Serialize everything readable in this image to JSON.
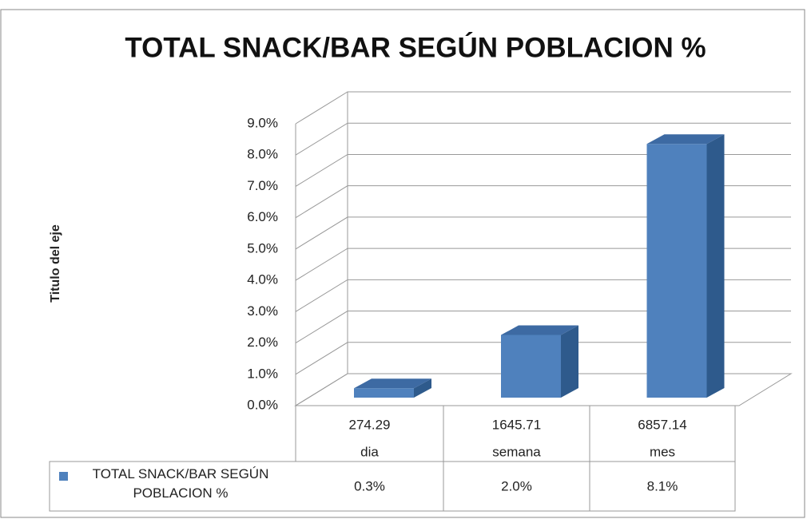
{
  "chart_data": {
    "type": "bar3d",
    "title": "TOTAL SNACK/BAR SEGÚN POBLACION %",
    "y_label": "Titulo del eje",
    "categories": [
      [
        "274.29",
        "dia"
      ],
      [
        "1645.71",
        "semana"
      ],
      [
        "6857.14",
        "mes"
      ]
    ],
    "series": [
      {
        "name": "TOTAL SNACK/BAR SEGÚN POBLACION %",
        "color": "#4f81bd",
        "values": [
          0.3,
          2.0,
          8.1
        ],
        "value_labels": [
          "0.3%",
          "2.0%",
          "8.1%"
        ]
      }
    ],
    "ylim": [
      0,
      9
    ],
    "yticks": [
      {
        "value": 0,
        "label": "0.0%"
      },
      {
        "value": 1,
        "label": "1.0%"
      },
      {
        "value": 2,
        "label": "2.0%"
      },
      {
        "value": 3,
        "label": "3.0%"
      },
      {
        "value": 4,
        "label": "4.0%"
      },
      {
        "value": 5,
        "label": "5.0%"
      },
      {
        "value": 6,
        "label": "6.0%"
      },
      {
        "value": 7,
        "label": "7.0%"
      },
      {
        "value": 8,
        "label": "8.0%"
      },
      {
        "value": 9,
        "label": "9.0%"
      }
    ],
    "grid": true
  }
}
